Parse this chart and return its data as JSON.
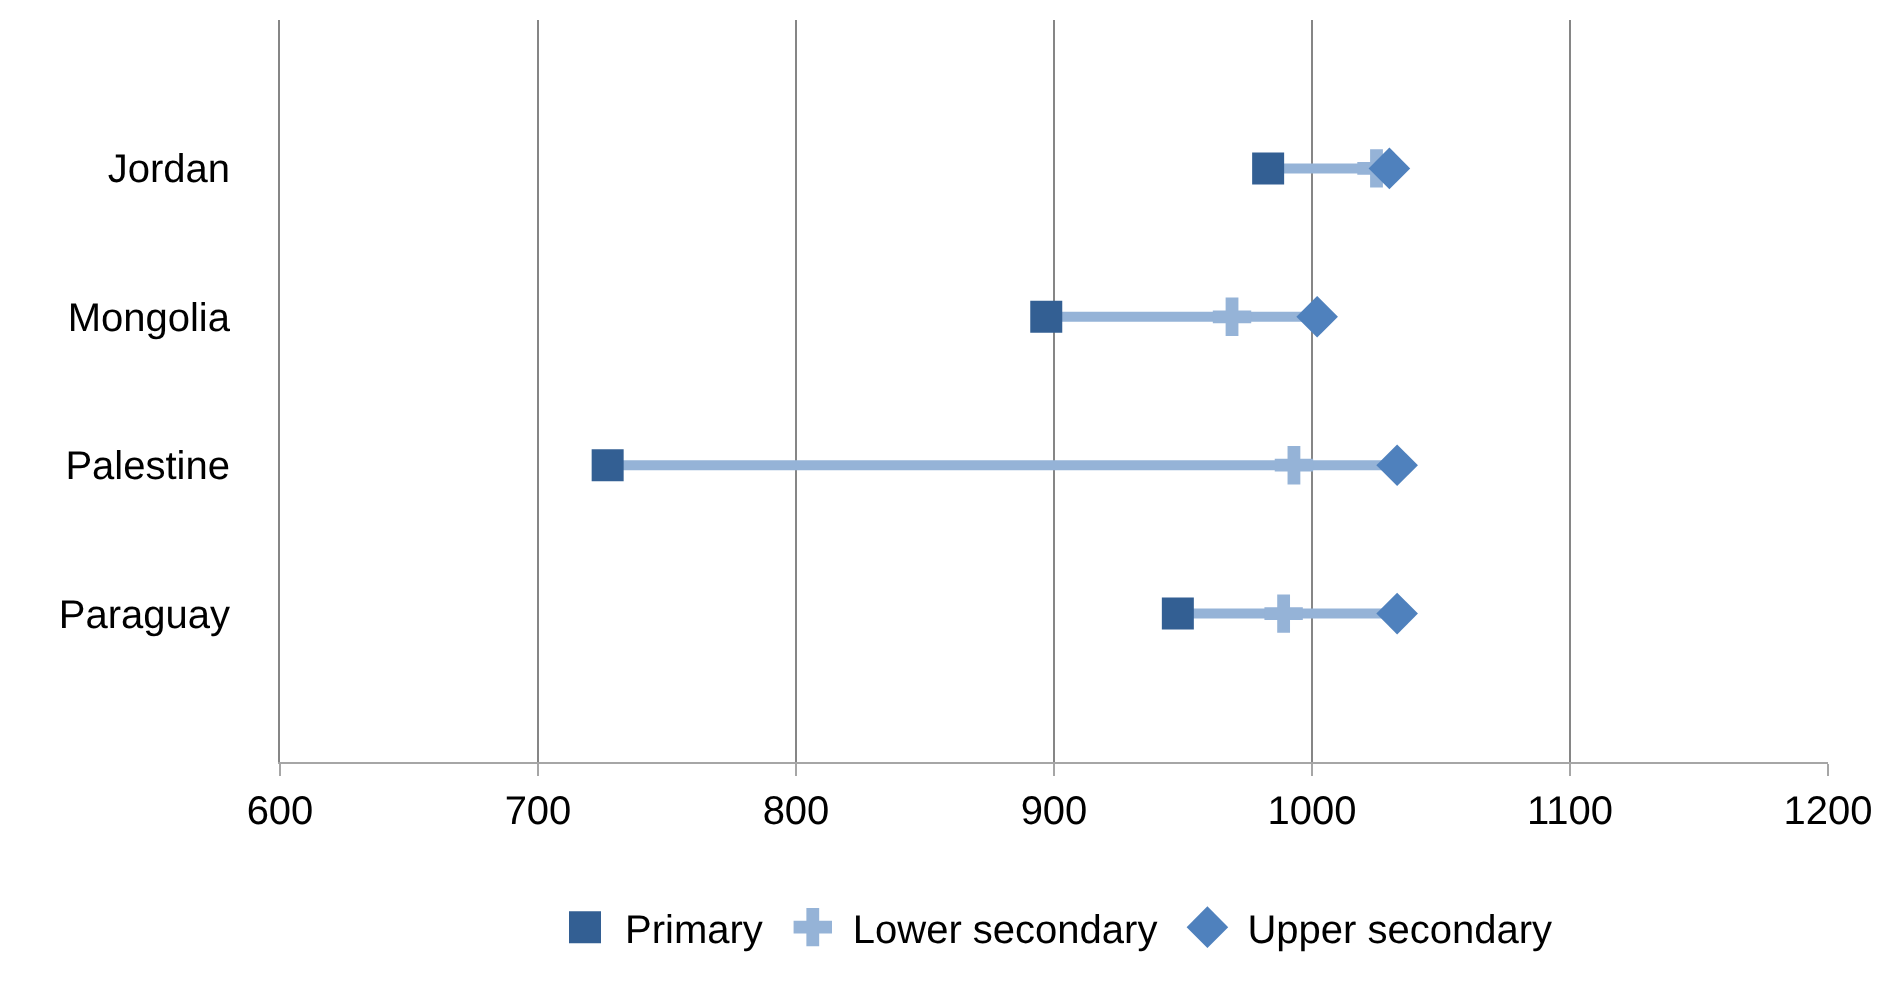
{
  "chart_data": {
    "type": "scatter",
    "orientation": "horizontal",
    "categories": [
      "Jordan",
      "Mongolia",
      "Palestine",
      "Paraguay"
    ],
    "series": [
      {
        "name": "Primary",
        "color": "#335f93",
        "marker": "square",
        "values": [
          983,
          897,
          727,
          948
        ]
      },
      {
        "name": "Lower secondary",
        "color": "#95b3d7",
        "marker": "cross",
        "values": [
          1025,
          969,
          993,
          989
        ]
      },
      {
        "name": "Upper secondary",
        "color": "#4f81bd",
        "marker": "diamond",
        "values": [
          1030,
          1002,
          1033,
          1033
        ]
      }
    ],
    "xlim": [
      600,
      1200
    ],
    "xticks": [
      600,
      700,
      800,
      900,
      1000,
      1100,
      1200
    ],
    "grid": "x",
    "legend": "bottom"
  }
}
